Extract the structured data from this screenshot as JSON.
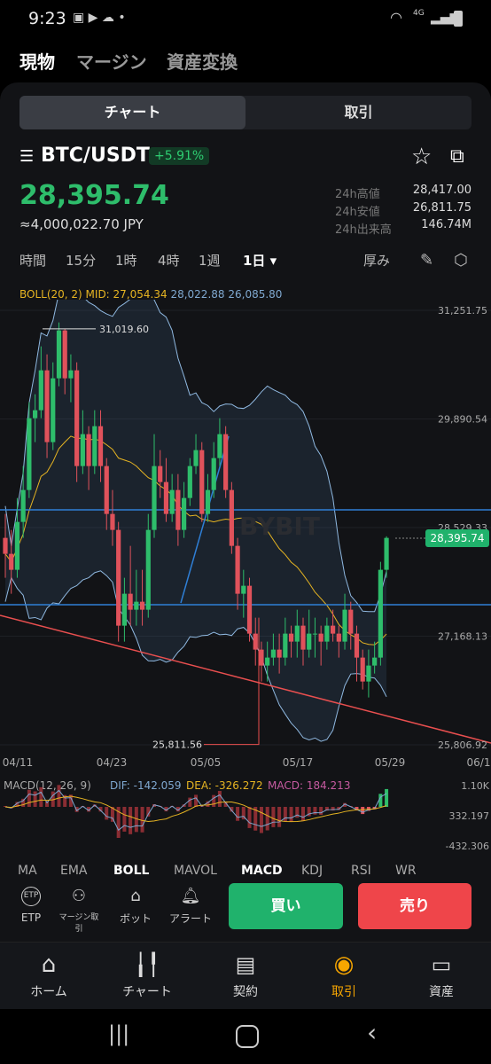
{
  "status": {
    "time": "9:23",
    "signal": "4G"
  },
  "top_tabs": [
    "現物",
    "マージン",
    "資産変換"
  ],
  "segment": {
    "left": "チャート",
    "right": "取引"
  },
  "pair": "BTC/USDT",
  "change": "+5.91%",
  "price": "28,395.74",
  "jpy": "≈4,000,022.70 JPY",
  "stats": [
    {
      "label": "24h高値",
      "value": "28,417.00"
    },
    {
      "label": "24h安値",
      "value": "26,811.75"
    },
    {
      "label": "24h出来高",
      "value": "146.74M"
    }
  ],
  "timeframes": [
    "時間",
    "15分",
    "1時",
    "4時",
    "1週",
    "1日 ▾"
  ],
  "toolbar_right": "厚み",
  "boll": {
    "label": "BOLL(20, 2) MID: 27,054.34",
    "up": "28,022.88",
    "dn": "26,085.80"
  },
  "price_axis": [
    "31,251.75",
    "29,890.54",
    "28,529.33",
    "27,168.13",
    "25,806.92"
  ],
  "annotations": {
    "high": "31,019.60",
    "low": "25,811.56",
    "current": "28,395.74",
    "watermark": "BYBIT"
  },
  "date_axis": [
    "04/11",
    "04/23",
    "05/05",
    "05/17",
    "05/29",
    "06/1"
  ],
  "macd": {
    "label": "MACD(12, 26, 9)",
    "dif": "DIF: -142.059",
    "dea": "DEA: -326.272",
    "val": "MACD: 184.213",
    "axis": [
      "1.10K",
      "332.197",
      "-432.306"
    ]
  },
  "indicators": [
    "MA",
    "EMA",
    "BOLL",
    "MAVOL",
    "MACD",
    "KDJ",
    "RSI",
    "WR"
  ],
  "tools": [
    "ETP",
    "マージン取引",
    "ボット",
    "アラート"
  ],
  "tools_top": "ETP",
  "buy": "買い",
  "sell": "売り",
  "tabs": [
    "ホーム",
    "チャート",
    "契約",
    "取引",
    "資産"
  ],
  "colors": {
    "up": "#2ebd6b",
    "down": "#e0525b",
    "accent": "#f7a600",
    "boll": "#e6b422",
    "band": "#8fb8e0"
  },
  "chart_data": {
    "type": "candlestick",
    "ylim": [
      25806.92,
      31251.75
    ],
    "x_ticks": [
      "04/11",
      "04/23",
      "05/05",
      "05/17",
      "05/29",
      "06/1"
    ],
    "candles": [
      [
        28400,
        28200,
        28700,
        27900
      ],
      [
        28200,
        28000,
        28500,
        27700
      ],
      [
        28000,
        28600,
        28900,
        27900
      ],
      [
        28600,
        29000,
        29300,
        28400
      ],
      [
        29000,
        29900,
        30100,
        28900
      ],
      [
        29900,
        30000,
        30200,
        29600
      ],
      [
        30000,
        30500,
        30800,
        29900
      ],
      [
        30500,
        29600,
        30700,
        29400
      ],
      [
        29600,
        30400,
        30600,
        29500
      ],
      [
        30400,
        31000,
        31100,
        30300
      ],
      [
        31000,
        30400,
        31020,
        30200
      ],
      [
        30400,
        30500,
        30700,
        30100
      ],
      [
        30500,
        29300,
        30600,
        29100
      ],
      [
        29300,
        29700,
        30000,
        29200
      ],
      [
        29700,
        29300,
        29800,
        29000
      ],
      [
        29300,
        29800,
        30000,
        29200
      ],
      [
        29800,
        29300,
        30000,
        29100
      ],
      [
        29300,
        28700,
        29400,
        28500
      ],
      [
        28700,
        28500,
        29000,
        28300
      ],
      [
        28500,
        27300,
        28600,
        27100
      ],
      [
        27300,
        27700,
        27900,
        27100
      ],
      [
        27700,
        27500,
        28300,
        27300
      ],
      [
        27500,
        27600,
        28000,
        27300
      ],
      [
        27600,
        27500,
        28000,
        27300
      ],
      [
        27500,
        28500,
        28700,
        27400
      ],
      [
        28500,
        29300,
        29700,
        28400
      ],
      [
        29300,
        29100,
        29500,
        28900
      ],
      [
        29100,
        28700,
        29400,
        28600
      ],
      [
        28700,
        29000,
        29200,
        28600
      ],
      [
        29000,
        28500,
        29200,
        28300
      ],
      [
        28500,
        28900,
        29100,
        28400
      ],
      [
        28900,
        29300,
        29400,
        28800
      ],
      [
        29300,
        29500,
        29700,
        29200
      ],
      [
        29500,
        28700,
        29600,
        28600
      ],
      [
        28700,
        29000,
        29200,
        28600
      ],
      [
        29000,
        29400,
        29600,
        28900
      ],
      [
        29400,
        29700,
        29900,
        29300
      ],
      [
        29700,
        29000,
        29800,
        28900
      ],
      [
        29000,
        28300,
        29100,
        28200
      ],
      [
        28300,
        27700,
        28400,
        27500
      ],
      [
        27700,
        27800,
        28000,
        27400
      ],
      [
        27800,
        27200,
        27900,
        27100
      ],
      [
        27200,
        27000,
        27400,
        26800
      ],
      [
        27000,
        26800,
        27100,
        26600
      ],
      [
        26800,
        26900,
        27100,
        26600
      ],
      [
        26900,
        27000,
        27200,
        26800
      ],
      [
        27000,
        26900,
        27200,
        26700
      ],
      [
        26900,
        27200,
        27400,
        26800
      ],
      [
        27200,
        27100,
        27300,
        26900
      ],
      [
        27100,
        27300,
        27500,
        26900
      ],
      [
        27300,
        27000,
        27400,
        26800
      ],
      [
        27000,
        27200,
        27500,
        26900
      ],
      [
        27200,
        27200,
        27400,
        26900
      ],
      [
        27200,
        27100,
        27300,
        26800
      ],
      [
        27100,
        27300,
        27400,
        27000
      ],
      [
        27300,
        27200,
        27500,
        27100
      ],
      [
        27200,
        27100,
        27300,
        26900
      ],
      [
        27100,
        27500,
        27700,
        27000
      ],
      [
        27500,
        27200,
        27600,
        27000
      ],
      [
        27200,
        26900,
        27300,
        26600
      ],
      [
        26900,
        26600,
        27000,
        26500
      ],
      [
        26600,
        26800,
        27000,
        26400
      ],
      [
        26800,
        26900,
        27100,
        26700
      ],
      [
        26900,
        28000,
        28100,
        26800
      ],
      [
        28000,
        28400,
        28420,
        27900
      ]
    ]
  }
}
